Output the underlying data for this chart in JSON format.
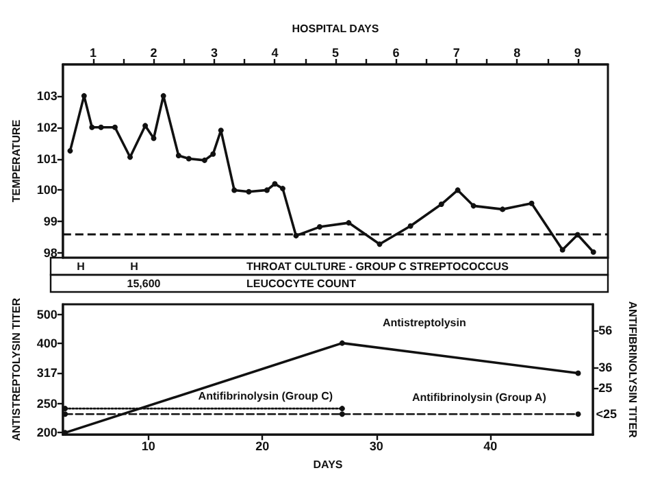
{
  "chart_data": [
    {
      "type": "line",
      "xlabel": "HOSPITAL DAYS",
      "ylabel": "TEMPERATURE",
      "xlim": [
        0.5,
        9.5
      ],
      "xticks": [
        1,
        {
          "value": 1.5,
          "label": null
        },
        2,
        {
          "value": 2.5,
          "label": null
        },
        3,
        {
          "value": 3.5,
          "label": null
        },
        4,
        {
          "value": 4.5,
          "label": null
        },
        5,
        {
          "value": 5.5,
          "label": null
        },
        6,
        {
          "value": 6.5,
          "label": null
        },
        7,
        {
          "value": 7.5,
          "label": null
        },
        8,
        {
          "value": 8.5,
          "label": null
        },
        9
      ],
      "ylim": [
        97.85,
        104
      ],
      "yticks": [
        98,
        99,
        100,
        101,
        102,
        103
      ],
      "marker": "circle",
      "line_style": "solid",
      "series": [
        {
          "color": "#111111",
          "x": [
            0.62,
            0.85,
            0.98,
            1.13,
            1.36,
            1.61,
            1.86,
            2.0,
            2.16,
            2.41,
            2.58,
            2.84,
            2.98,
            3.11,
            3.33,
            3.57,
            3.87,
            4.0,
            4.13,
            4.35,
            4.74,
            5.22,
            5.73,
            6.24,
            6.75,
            7.02,
            7.28,
            7.76,
            8.24,
            8.75,
            9.0,
            9.26
          ],
          "values": [
            101.25,
            103.0,
            102.0,
            102.0,
            102.0,
            101.05,
            102.05,
            101.65,
            103.0,
            101.1,
            101.0,
            100.95,
            101.15,
            101.9,
            100.0,
            99.95,
            100.0,
            100.2,
            100.05,
            98.55,
            98.83,
            98.96,
            98.28,
            98.86,
            99.55,
            100.0,
            99.5,
            99.39,
            99.58,
            98.1,
            98.58,
            98.03
          ]
        }
      ],
      "ref_lines": [
        {
          "axis": "y",
          "value": 98.6,
          "color": "#111111",
          "line_style": "dashed"
        }
      ],
      "annotations": [
        "H",
        "H",
        "THROAT CULTURE - GROUP C STREPTOCOCCUS",
        "15,600",
        "LEUCOCYTE COUNT"
      ]
    },
    {
      "type": "line",
      "xlabel": "DAYS",
      "ylabel": "ANTISTREPTOLYSIN TITER",
      "y2label": "ANTIFIBRINOLYSIN TITER",
      "xlim": [
        2.5,
        49
      ],
      "xticks": [
        10,
        20,
        30,
        40
      ],
      "ylim": [
        197,
        540
      ],
      "yticks": [
        200,
        250,
        317,
        400,
        500
      ],
      "y2lim": [
        0,
        70
      ],
      "y2ticks": [
        25,
        36,
        56
      ],
      "log": "y",
      "marker": "circle",
      "series": [
        {
          "name": "Antistreptolysin",
          "color": "#111111",
          "line_style": "solid",
          "x": [
            2.7,
            27,
            47.7
          ],
          "values": [
            200,
            400,
            317
          ]
        },
        {
          "name": "Antifibrinolysin (Group C)",
          "color": "#111111",
          "line_style": "dotted",
          "axis": "y2",
          "x": [
            2.7,
            27
          ],
          "values": [
            14,
            14
          ]
        },
        {
          "name": "Antifibrinolysin (Group A)",
          "color": "#111111",
          "line_style": "dashed",
          "axis": "y2",
          "x": [
            2.7,
            27,
            47.7
          ],
          "values": [
            11,
            11,
            11
          ],
          "value_labels": [
            null,
            null,
            "<25"
          ]
        }
      ]
    }
  ]
}
